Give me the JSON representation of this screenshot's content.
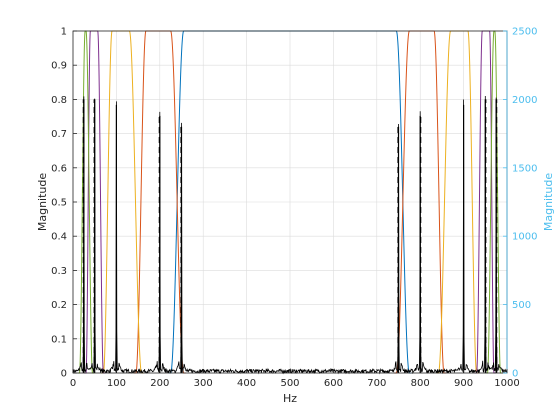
{
  "chart_data": {
    "type": "line",
    "xlabel": "Hz",
    "ylabel": "Magnitude",
    "ylabel_right": "Magnitude",
    "xlim": [
      0,
      1000
    ],
    "ylim": [
      0,
      1
    ],
    "ylim_right": [
      0,
      2500
    ],
    "x_ticks": [
      "0",
      "100",
      "200",
      "300",
      "400",
      "500",
      "600",
      "700",
      "800",
      "900",
      "1000"
    ],
    "y_ticks": [
      "0",
      "0.1",
      "0.2",
      "0.3",
      "0.4",
      "0.5",
      "0.6",
      "0.7",
      "0.8",
      "0.9",
      "1"
    ],
    "y_ticks_right": [
      "0",
      "500",
      "1000",
      "1500",
      "2000",
      "2500"
    ],
    "grid": true,
    "colors": {
      "filter_1": "#0072BD",
      "filter_2": "#D95319",
      "filter_3": "#EDB120",
      "filter_4": "#7E2F8E",
      "filter_5": "#77AC30",
      "spectrum": "#000000",
      "right_axis": "#4DBEEE"
    },
    "filters": [
      {
        "color_key": "filter_1",
        "rise_start": 225,
        "rise_end": 255,
        "fall_start": 745,
        "fall_end": 775
      },
      {
        "color_key": "filter_2",
        "rise_start": 145,
        "rise_end": 168,
        "fall_start": 225,
        "fall_end": 255,
        "mirror": true
      },
      {
        "color_key": "filter_3",
        "rise_start": 70,
        "rise_end": 90,
        "fall_start": 130,
        "fall_end": 158,
        "mirror": true
      },
      {
        "color_key": "filter_4",
        "rise_start": 30,
        "rise_end": 40,
        "fall_start": 57,
        "fall_end": 70,
        "mirror": true
      },
      {
        "color_key": "filter_5",
        "rise_start": 15,
        "rise_end": 28,
        "fall_start": 30,
        "fall_end": 45,
        "mirror": true
      }
    ],
    "spectrum_peaks": [
      {
        "x": 25,
        "y": 2000
      },
      {
        "x": 50,
        "y": 2000
      },
      {
        "x": 100,
        "y": 1960
      },
      {
        "x": 200,
        "y": 1880
      },
      {
        "x": 250,
        "y": 1800
      },
      {
        "x": 750,
        "y": 1800
      },
      {
        "x": 800,
        "y": 1880
      },
      {
        "x": 900,
        "y": 1960
      },
      {
        "x": 950,
        "y": 2000
      },
      {
        "x": 975,
        "y": 2000
      }
    ],
    "dashed_markers": [
      {
        "x": 24,
        "y": 0.8
      },
      {
        "x": 49,
        "y": 0.8
      },
      {
        "x": 199,
        "y": 0.75
      },
      {
        "x": 249,
        "y": 0.72
      },
      {
        "x": 749,
        "y": 0.72
      },
      {
        "x": 801,
        "y": 0.75
      },
      {
        "x": 951,
        "y": 0.8
      },
      {
        "x": 976,
        "y": 0.8
      }
    ]
  }
}
